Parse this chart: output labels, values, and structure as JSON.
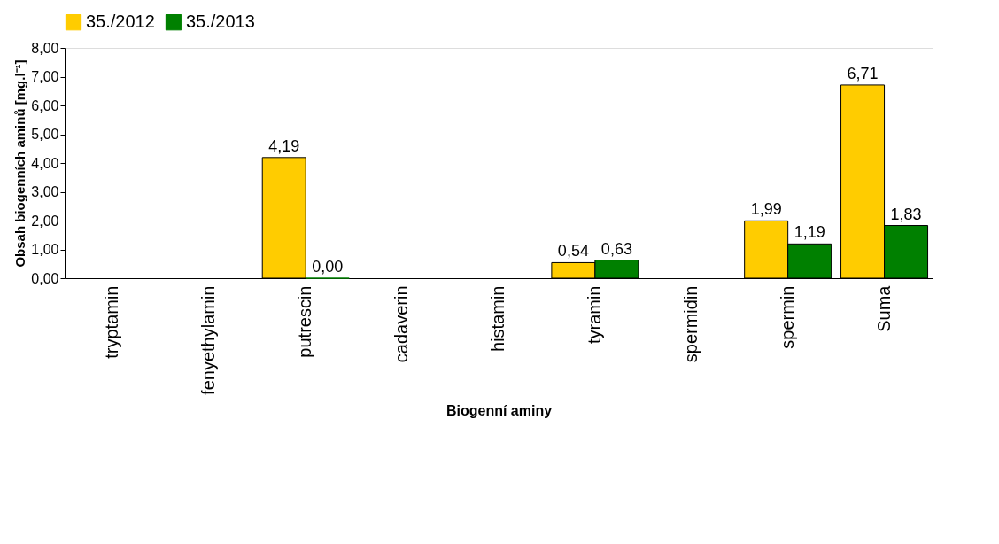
{
  "chart_data": {
    "type": "bar",
    "xlabel": "Biogenní aminy",
    "ylabel": "Obsah biogenních aminů [mg.l⁻¹]",
    "categories": [
      "tryptamin",
      "fenyethylamin",
      "putrescin",
      "cadaverin",
      "histamin",
      "tyramin",
      "spermidin",
      "spermin",
      "Suma"
    ],
    "series": [
      {
        "name": "35./2012",
        "color": "#ffcc00",
        "values": [
          null,
          null,
          4.19,
          null,
          null,
          0.54,
          null,
          1.99,
          6.71
        ],
        "value_labels": [
          null,
          null,
          "4,19",
          null,
          null,
          "0,54",
          null,
          "1,99",
          "6,71"
        ]
      },
      {
        "name": "35./2013",
        "color": "#008000",
        "values": [
          null,
          null,
          0.0,
          null,
          null,
          0.63,
          null,
          1.19,
          1.83
        ],
        "value_labels": [
          null,
          null,
          "0,00",
          null,
          null,
          "0,63",
          null,
          "1,19",
          "1,83"
        ]
      }
    ],
    "ylim": [
      0,
      8
    ],
    "yticks": [
      {
        "value": 0,
        "label": "0,00"
      },
      {
        "value": 1,
        "label": "1,00"
      },
      {
        "value": 2,
        "label": "2,00"
      },
      {
        "value": 3,
        "label": "3,00"
      },
      {
        "value": 4,
        "label": "4,00"
      },
      {
        "value": 5,
        "label": "5,00"
      },
      {
        "value": 6,
        "label": "6,00"
      },
      {
        "value": 7,
        "label": "7,00"
      },
      {
        "value": 8,
        "label": "8,00"
      }
    ],
    "grid": false,
    "legend": "top"
  }
}
